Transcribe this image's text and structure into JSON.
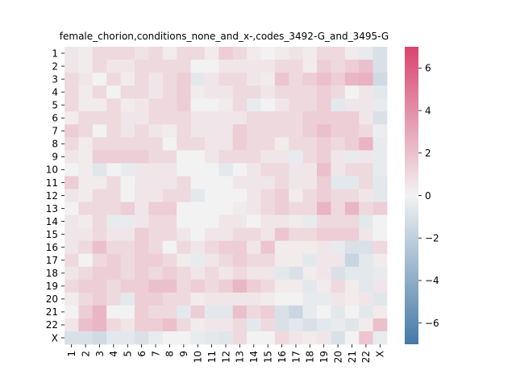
{
  "chart_data": {
    "type": "heatmap",
    "title": "female_chorion,conditions_none_and_x-,codes_3492-G_and_3495-G",
    "xlabel": "",
    "ylabel": "",
    "rows": [
      "1",
      "2",
      "3",
      "4",
      "5",
      "6",
      "7",
      "8",
      "9",
      "10",
      "11",
      "12",
      "13",
      "14",
      "15",
      "16",
      "17",
      "18",
      "19",
      "20",
      "21",
      "22",
      "X"
    ],
    "cols": [
      "1",
      "2",
      "3",
      "4",
      "5",
      "6",
      "7",
      "8",
      "9",
      "10",
      "11",
      "12",
      "13",
      "14",
      "15",
      "16",
      "17",
      "18",
      "19",
      "20",
      "21",
      "22",
      "X"
    ],
    "colorbar": {
      "min": -7,
      "max": 7,
      "ticks": [
        -6,
        -4,
        -2,
        0,
        2,
        4,
        6
      ],
      "tick_labels": [
        "−6",
        "−4",
        "−2",
        "0",
        "2",
        "4",
        "6"
      ],
      "low_color": "#4479a7",
      "mid_color": "#f2f2f2",
      "high_color": "#d9446f"
    },
    "values": [
      [
        0.5,
        0.3,
        1.0,
        1.0,
        1.0,
        0.6,
        1.0,
        0.3,
        1.0,
        1.0,
        0.3,
        1.5,
        1.0,
        0.3,
        0.0,
        0.3,
        0.6,
        0.3,
        1.0,
        1.0,
        0.3,
        -0.4,
        -1.0
      ],
      [
        0.5,
        0.3,
        1.0,
        0.5,
        0.5,
        1.0,
        1.0,
        1.0,
        1.0,
        0.0,
        0.0,
        0.5,
        0.5,
        0.5,
        0.5,
        1.0,
        1.0,
        0.3,
        1.5,
        1.0,
        1.5,
        2.0,
        -1.0
      ],
      [
        1.0,
        0.5,
        0.0,
        1.0,
        0.3,
        1.0,
        0.5,
        1.0,
        1.5,
        -0.6,
        0.5,
        1.0,
        1.0,
        0.5,
        0.3,
        1.8,
        1.0,
        1.5,
        2.0,
        1.5,
        2.4,
        2.6,
        -1.4
      ],
      [
        1.0,
        0.3,
        1.0,
        0.0,
        1.0,
        1.0,
        0.5,
        1.0,
        1.5,
        0.3,
        0.5,
        0.5,
        1.0,
        1.0,
        0.5,
        1.0,
        1.0,
        1.0,
        1.5,
        1.0,
        0.0,
        0.5,
        -0.6
      ],
      [
        1.0,
        0.3,
        0.3,
        1.0,
        0.3,
        0.5,
        1.0,
        1.0,
        1.5,
        0.0,
        0.0,
        0.3,
        1.0,
        -0.4,
        0.0,
        0.5,
        1.0,
        1.0,
        1.5,
        -0.6,
        0.5,
        0.5,
        -0.4
      ],
      [
        0.3,
        1.0,
        1.0,
        1.0,
        0.5,
        0.5,
        1.0,
        1.0,
        1.0,
        0.5,
        0.5,
        0.5,
        0.5,
        1.0,
        1.0,
        1.0,
        1.0,
        1.5,
        1.5,
        1.5,
        1.5,
        0.5,
        -1.0
      ],
      [
        1.5,
        1.0,
        0.0,
        1.0,
        0.5,
        1.0,
        0.5,
        0.3,
        1.0,
        0.5,
        0.5,
        0.5,
        1.5,
        1.0,
        1.0,
        1.0,
        1.0,
        1.5,
        2.0,
        1.5,
        1.5,
        1.0,
        -0.3
      ],
      [
        1.0,
        0.3,
        1.0,
        1.0,
        1.0,
        1.0,
        1.0,
        0.0,
        1.0,
        1.0,
        0.5,
        0.5,
        1.5,
        1.0,
        1.0,
        0.3,
        1.0,
        1.0,
        1.5,
        1.0,
        1.5,
        2.5,
        -0.4
      ],
      [
        0.5,
        0.3,
        1.5,
        1.5,
        1.5,
        1.5,
        1.0,
        1.0,
        0.0,
        0.0,
        0.5,
        1.0,
        1.0,
        1.0,
        0.5,
        0.5,
        -0.4,
        1.0,
        1.5,
        0.5,
        -0.4,
        0.5,
        -0.4
      ],
      [
        0.0,
        0.3,
        -0.7,
        0.0,
        -0.4,
        0.5,
        0.5,
        0.5,
        0.0,
        0.0,
        0.0,
        -0.6,
        0.0,
        0.5,
        1.0,
        1.0,
        0.5,
        0.5,
        2.0,
        0.5,
        1.0,
        1.0,
        -0.4
      ],
      [
        1.5,
        0.3,
        0.3,
        1.0,
        0.0,
        0.5,
        0.5,
        0.5,
        1.0,
        0.0,
        0.0,
        0.0,
        0.5,
        0.5,
        0.5,
        1.0,
        0.5,
        0.5,
        1.5,
        -0.6,
        -0.6,
        1.0,
        -0.6
      ],
      [
        0.5,
        0.3,
        1.0,
        1.0,
        0.0,
        0.5,
        0.5,
        1.0,
        1.0,
        -0.6,
        0.0,
        0.0,
        0.0,
        0.5,
        1.0,
        1.5,
        0.3,
        1.0,
        1.5,
        1.0,
        1.0,
        0.5,
        -0.6
      ],
      [
        0.0,
        1.0,
        1.0,
        1.0,
        1.5,
        0.5,
        1.5,
        1.5,
        0.0,
        0.0,
        0.0,
        0.0,
        0.3,
        0.5,
        1.0,
        1.5,
        1.0,
        1.0,
        2.5,
        1.0,
        2.4,
        1.0,
        1.5
      ],
      [
        0.5,
        0.3,
        1.0,
        -0.4,
        -0.4,
        0.5,
        1.0,
        1.0,
        0.0,
        0.0,
        0.0,
        0.5,
        0.5,
        0.0,
        0.5,
        0.5,
        0.3,
        -0.4,
        1.0,
        1.0,
        1.0,
        -0.6,
        0.0
      ],
      [
        0.5,
        0.5,
        1.0,
        0.5,
        0.5,
        1.5,
        1.0,
        1.0,
        0.5,
        0.0,
        0.5,
        0.5,
        1.0,
        1.0,
        0.5,
        1.8,
        1.0,
        1.0,
        1.5,
        1.5,
        1.5,
        0.5,
        0.0
      ],
      [
        0.5,
        1.0,
        2.0,
        1.0,
        1.0,
        1.5,
        1.0,
        0.0,
        1.0,
        0.5,
        1.0,
        1.5,
        1.5,
        0.5,
        1.8,
        0.3,
        0.3,
        0.3,
        0.5,
        -0.4,
        -1.0,
        -1.0,
        1.0
      ],
      [
        1.0,
        0.0,
        1.0,
        1.5,
        1.0,
        1.5,
        1.5,
        1.0,
        0.3,
        -0.4,
        0.5,
        1.0,
        1.5,
        1.0,
        1.0,
        0.3,
        0.3,
        -0.6,
        0.5,
        0.5,
        -1.7,
        -0.6,
        0.3
      ],
      [
        0.5,
        1.0,
        1.5,
        1.5,
        1.0,
        1.5,
        1.0,
        1.5,
        1.0,
        0.5,
        1.0,
        0.5,
        1.0,
        0.5,
        0.5,
        -0.6,
        -1.0,
        0.3,
        0.5,
        -1.0,
        -0.6,
        -0.6,
        -0.4
      ],
      [
        1.0,
        1.5,
        1.5,
        1.0,
        1.5,
        1.5,
        2.0,
        2.0,
        1.0,
        1.5,
        1.0,
        1.5,
        2.4,
        1.5,
        1.0,
        0.3,
        0.3,
        -0.6,
        0.3,
        1.0,
        0.3,
        -0.6,
        0.5
      ],
      [
        0.3,
        1.0,
        1.5,
        1.0,
        -0.6,
        1.5,
        1.5,
        1.0,
        1.0,
        0.3,
        0.5,
        0.5,
        0.5,
        0.5,
        0.3,
        0.0,
        0.0,
        -0.4,
        -0.4,
        0.5,
        0.3,
        0.5,
        -0.7
      ],
      [
        0.0,
        1.5,
        2.4,
        0.0,
        0.0,
        1.5,
        1.0,
        1.0,
        -0.6,
        1.5,
        -0.6,
        -0.6,
        2.0,
        1.0,
        1.5,
        -1.0,
        -1.6,
        -0.4,
        0.0,
        -0.6,
        0.0,
        -0.6,
        0.3
      ],
      [
        0.5,
        2.0,
        2.4,
        1.0,
        0.5,
        1.5,
        1.5,
        2.0,
        1.0,
        0.3,
        0.5,
        0.5,
        1.0,
        -0.6,
        1.0,
        -1.0,
        -0.6,
        -1.0,
        -0.6,
        -0.4,
        -0.7,
        0.3,
        2.0
      ],
      [
        -1.0,
        -1.0,
        -1.4,
        -0.6,
        -0.6,
        -1.0,
        -0.4,
        0.0,
        0.0,
        -0.4,
        -0.6,
        -0.7,
        1.0,
        0.0,
        0.0,
        1.0,
        0.5,
        0.3,
        0.5,
        -1.0,
        0.0,
        1.8,
        -0.4
      ]
    ]
  }
}
